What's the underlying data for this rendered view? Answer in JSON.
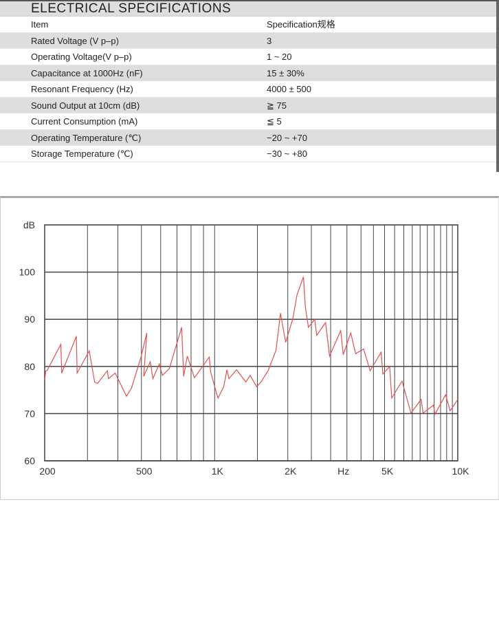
{
  "spec_table": {
    "title": "ELECTRICAL SPECIFICATIONS",
    "header": {
      "item": "Item",
      "spec": "Specification规格"
    },
    "rows": [
      {
        "item": "Rated Voltage (V p–p)",
        "spec": "3"
      },
      {
        "item": "Operating Voltage(V p–p)",
        "spec": "1 ~ 20"
      },
      {
        "item": "Capacitance at 1000Hz (nF)",
        "spec": "15 ± 30%"
      },
      {
        "item": "Resonant Frequency (Hz)",
        "spec": "4000 ± 500"
      },
      {
        "item": "Sound Output  at  10cm (dB)",
        "spec": "≧ 75"
      },
      {
        "item": "Current Consumption (mA)",
        "spec": "≦ 5"
      },
      {
        "item": "Operating Temperature (℃)",
        "spec": "−20 ~ +70"
      },
      {
        "item": "Storage Temperature (℃)",
        "spec": "−30 ~ +80"
      }
    ]
  },
  "chart_data": {
    "type": "line",
    "ylabel": "dB",
    "xlabel": "Hz",
    "x_scale": "log",
    "xlim": [
      200,
      10000
    ],
    "ylim": [
      60,
      110
    ],
    "yticks": [
      60,
      70,
      80,
      90,
      100
    ],
    "xtick_labels": [
      {
        "x": 200,
        "label": "200"
      },
      {
        "x": 500,
        "label": "500"
      },
      {
        "x": 1000,
        "label": "1K"
      },
      {
        "x": 2000,
        "label": "2K"
      },
      {
        "x": 3300,
        "label": "Hz"
      },
      {
        "x": 5000,
        "label": "5K"
      },
      {
        "x": 10000,
        "label": "10K"
      }
    ],
    "x_gridlines": [
      200,
      300,
      400,
      500,
      600,
      700,
      800,
      900,
      1000,
      1500,
      2000,
      2500,
      3000,
      3500,
      4000,
      4500,
      5000,
      5500,
      6000,
      6500,
      7000,
      7500,
      8000,
      8500,
      9000,
      9500,
      10000
    ],
    "grid": true,
    "line_color": "#e05050",
    "series": [
      {
        "x": [
          200,
          202,
          205,
          233,
          235,
          270,
          272,
          305,
          321,
          330,
          362,
          366,
          390,
          434,
          455,
          498,
          526,
          511,
          544,
          557,
          592,
          610,
          652,
          732,
          746,
          772,
          826,
          950,
          963,
          1032,
          1090,
          1124,
          1145,
          1230,
          1344,
          1400,
          1490,
          1550,
          1660,
          1788,
          1866,
          1960,
          2100,
          2180,
          2320,
          2360,
          2430,
          2580,
          2630,
          2860,
          2970,
          3300,
          3380,
          3630,
          3800,
          4100,
          4360,
          4840,
          4920,
          5250,
          5350,
          5900,
          6420,
          7070,
          7200,
          7940,
          8060,
          8920,
          9300,
          10000
        ],
        "y": [
          77.1,
          79,
          79.2,
          84.7,
          78.6,
          86.4,
          78.6,
          83.3,
          76.7,
          76.4,
          79.1,
          77.4,
          78.6,
          73.7,
          75.4,
          82,
          87.1,
          77.9,
          81,
          77.4,
          80.5,
          78.1,
          79.6,
          88.3,
          77.9,
          82.2,
          77.6,
          82,
          78.8,
          73.3,
          75.7,
          79.3,
          77.4,
          79.3,
          76.7,
          78.1,
          75.7,
          76.7,
          79.1,
          83.4,
          91.3,
          85.1,
          90.2,
          95.1,
          99,
          92.7,
          88.3,
          90,
          86.6,
          89.3,
          82.2,
          87.6,
          82.5,
          87.1,
          82.7,
          83.7,
          79.1,
          83,
          78.4,
          80,
          73.3,
          76.9,
          70.1,
          73,
          70.1,
          71.8,
          69.9,
          74,
          70.6,
          73
        ]
      }
    ]
  }
}
